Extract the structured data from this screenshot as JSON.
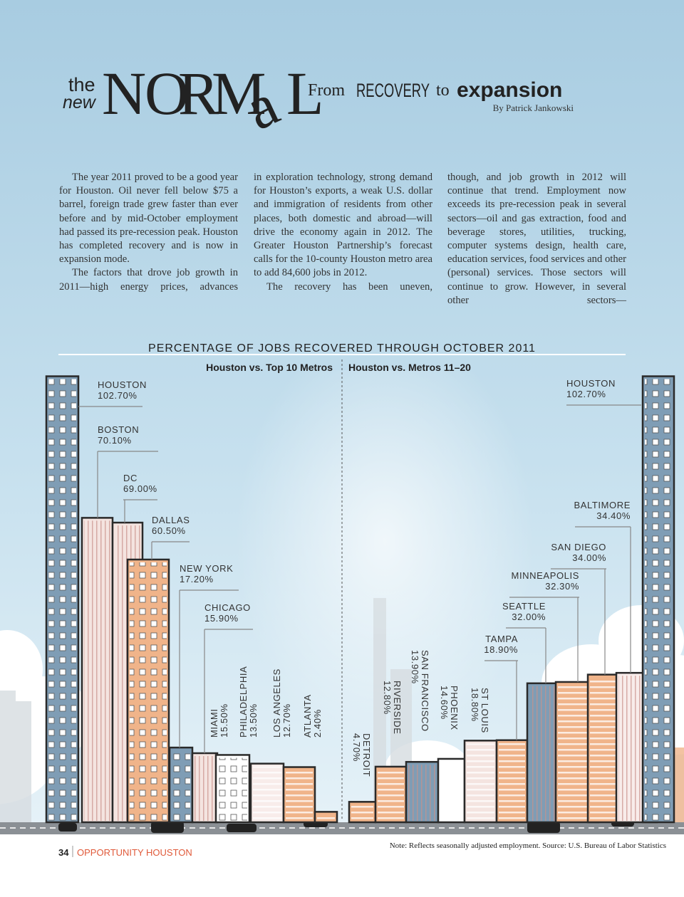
{
  "masthead": {
    "small": [
      "the",
      "new"
    ],
    "letters": [
      "N",
      "O",
      "R",
      "M",
      "a",
      "L"
    ],
    "tagline": [
      "From",
      "RECOVERY",
      "to",
      "expansion"
    ],
    "byline": "By Patrick Jankowski"
  },
  "columns": [
    [
      "The year 2011 proved to be a good year for Houston. Oil never fell below $75 a barrel, foreign trade grew faster than ever before and by mid-October employment had passed its pre-recession peak. Houston has completed recovery and is now in expansion mode.",
      "The factors that drove job growth in 2011—high energy prices, advances"
    ],
    [
      "in exploration technology, strong demand for Houston’s exports, a weak U.S. dollar and immigration of residents from other places, both domestic and abroad—will drive the economy again in 2012. The Greater Houston Partnership’s forecast calls for the 10-county Houston metro area to add 84,600 jobs in 2012.",
      "The recovery has been uneven,"
    ],
    [
      "though, and job growth in 2012 will continue that trend. Employment now exceeds its pre-recession peak in several sectors—oil and gas extraction, food and beverage stores, utilities, trucking, computer systems design, health care, education services, food services and other (personal) services. Those sectors will continue to grow. However, in several other sectors—"
    ]
  ],
  "figure": {
    "title": "PERCENTAGE OF JOBS RECOVERED THROUGH OCTOBER 2011",
    "note": "Note: Reflects seasonally adjusted employment. Source: U.S. Bureau of Labor Statistics"
  },
  "chart_data": [
    {
      "type": "bar",
      "subtitle": "Houston vs. Top 10 Metros",
      "categories": [
        "HOUSTON",
        "BOSTON",
        "DC",
        "DALLAS",
        "NEW YORK",
        "CHICAGO",
        "MIAMI",
        "PHILADELPHIA",
        "LOS ANGELES",
        "ATLANTA"
      ],
      "values": [
        102.7,
        70.1,
        69.0,
        60.5,
        17.2,
        15.9,
        15.5,
        13.5,
        12.7,
        2.4
      ],
      "value_labels": [
        "102.70%",
        "70.10%",
        "69.00%",
        "60.50%",
        "17.20%",
        "15.90%",
        "15.50%",
        "13.50%",
        "12.70%",
        "2.40%"
      ],
      "colors": [
        "#7f9db5",
        "#f4e4e0",
        "#f4e4e0",
        "#f0b48a",
        "#7f9db5",
        "#f4e4e0",
        "#ffffff",
        "#f8ecea",
        "#f0b48a",
        "#f0b48a"
      ]
    },
    {
      "type": "bar",
      "subtitle": "Houston vs. Metros 11–20",
      "categories": [
        "DETROIT",
        "RIVERSIDE",
        "SAN FRANCISCO",
        "PHOENIX",
        "ST LOUIS",
        "TAMPA",
        "SEATTLE",
        "MINNEAPOLIS",
        "SAN DIEGO",
        "BALTIMORE",
        "HOUSTON"
      ],
      "values": [
        4.7,
        12.8,
        13.9,
        14.6,
        18.8,
        18.9,
        32.0,
        32.3,
        34.0,
        34.4,
        102.7
      ],
      "value_labels": [
        "4.70%",
        "12.80%",
        "13.90%",
        "14.60%",
        "18.80%",
        "18.90%",
        "32.00%",
        "32.30%",
        "34.00%",
        "34.40%",
        "102.70%"
      ],
      "colors": [
        "#f0b48a",
        "#f0b48a",
        "#7f9db5",
        "#ffffff",
        "#f4e4e0",
        "#f0b48a",
        "#7f9db5",
        "#f0b48a",
        "#f0b48a",
        "#f8ecea",
        "#7f9db5"
      ]
    }
  ],
  "footer": {
    "page": "34",
    "publication": "OPPORTUNITY HOUSTON"
  }
}
